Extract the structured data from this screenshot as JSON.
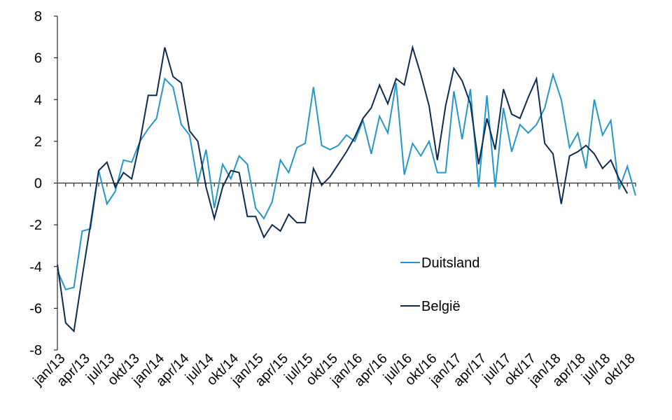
{
  "chart_data": {
    "type": "line",
    "xlabel": "",
    "ylabel": "",
    "ylim": [
      -8,
      8
    ],
    "yticks": [
      "8",
      "6",
      "4",
      "2",
      "0",
      "-2",
      "-4",
      "-6",
      "-8"
    ],
    "categories": [
      "jan/13",
      "feb/13",
      "mrt/13",
      "apr/13",
      "mei/13",
      "jun/13",
      "jul/13",
      "aug/13",
      "sep/13",
      "okt/13",
      "nov/13",
      "dec/13",
      "jan/14",
      "feb/14",
      "mrt/14",
      "apr/14",
      "mei/14",
      "jun/14",
      "jul/14",
      "aug/14",
      "sep/14",
      "okt/14",
      "nov/14",
      "dec/14",
      "jan/15",
      "feb/15",
      "mrt/15",
      "apr/15",
      "mei/15",
      "jun/15",
      "jul/15",
      "aug/15",
      "sep/15",
      "okt/15",
      "nov/15",
      "dec/15",
      "jan/16",
      "feb/16",
      "mrt/16",
      "apr/16",
      "mei/16",
      "jun/16",
      "jul/16",
      "aug/16",
      "sep/16",
      "okt/16",
      "nov/16",
      "dec/16",
      "jan/17",
      "feb/17",
      "mrt/17",
      "apr/17",
      "mei/17",
      "jun/17",
      "jul/17",
      "aug/17",
      "sep/17",
      "okt/17",
      "nov/17",
      "dec/17",
      "jan/18",
      "feb/18",
      "mrt/18",
      "apr/18",
      "mei/18",
      "jun/18",
      "jul/18",
      "aug/18",
      "sep/18",
      "okt/18",
      "nov/18"
    ],
    "xtick_labels": [
      "jan/13",
      "apr/13",
      "jul/13",
      "okt/13",
      "jan/14",
      "apr/14",
      "jul/14",
      "okt/14",
      "jan/15",
      "apr/15",
      "jul/15",
      "okt/15",
      "jan/16",
      "apr/16",
      "jul/16",
      "okt/16",
      "jan/17",
      "apr/17",
      "jul/17",
      "okt/17",
      "jan/18",
      "apr/18",
      "jul/18",
      "okt/18"
    ],
    "series": [
      {
        "name": "Duitsland",
        "color": "#2596c8",
        "values": [
          -4.2,
          -5.1,
          -5.0,
          -2.3,
          -2.2,
          0.6,
          -1.0,
          -0.4,
          1.1,
          1.0,
          2.0,
          2.6,
          3.1,
          5.0,
          4.6,
          2.8,
          2.3,
          0.0,
          1.6,
          -1.2,
          0.9,
          0.2,
          1.3,
          0.9,
          -1.2,
          -1.7,
          -0.9,
          1.1,
          0.5,
          1.7,
          1.9,
          4.6,
          1.8,
          1.6,
          1.8,
          2.3,
          2.0,
          3.0,
          1.4,
          3.2,
          2.4,
          4.8,
          0.4,
          1.9,
          1.3,
          2.0,
          0.5,
          0.5,
          4.4,
          2.1,
          4.5,
          -0.2,
          4.2,
          -0.2,
          3.6,
          1.5,
          2.8,
          2.4,
          2.8,
          3.6,
          5.2,
          4.0,
          1.7,
          2.4,
          0.7,
          4.0,
          2.3,
          3.0,
          -0.3,
          0.8,
          -0.6
        ]
      },
      {
        "name": "België",
        "color": "#0d2b4e",
        "values": [
          -3.9,
          -6.7,
          -7.1,
          -4.5,
          -2.0,
          0.6,
          1.0,
          -0.2,
          0.5,
          0.2,
          2.0,
          4.2,
          4.2,
          6.5,
          5.1,
          4.8,
          2.5,
          2.0,
          -0.2,
          -1.7,
          -0.2,
          0.6,
          0.5,
          -1.6,
          -1.6,
          -2.6,
          -2.0,
          -2.3,
          -1.5,
          -1.9,
          -1.9,
          0.7,
          -0.1,
          0.3,
          0.9,
          1.5,
          2.2,
          3.1,
          3.6,
          4.7,
          3.8,
          5.0,
          4.7,
          6.5,
          5.2,
          3.7,
          1.1,
          3.7,
          5.5,
          4.9,
          3.8,
          0.9,
          3.1,
          1.6,
          4.5,
          3.3,
          3.1,
          4.1,
          5.0,
          1.9,
          1.4,
          -1.0,
          1.3,
          1.5,
          1.8,
          1.4,
          0.7,
          1.1,
          0.2,
          -0.5,
          null
        ]
      }
    ],
    "legend": {
      "position": "center-right",
      "entries": [
        "Duitsland",
        "België"
      ]
    },
    "grid": false
  }
}
